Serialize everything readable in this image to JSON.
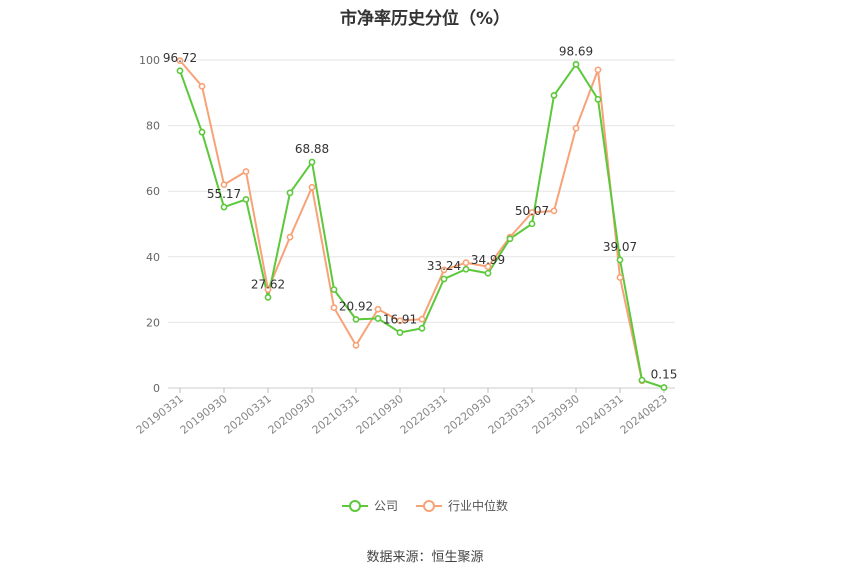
{
  "chart_data": {
    "type": "line",
    "title": "市净率历史分位（%）",
    "ylim": [
      0,
      100
    ],
    "yticks": [
      0,
      20,
      40,
      60,
      80,
      100
    ],
    "x_tick_labels": [
      "20190331",
      "20190930",
      "20200331",
      "20200930",
      "20210331",
      "20210930",
      "20220331",
      "20220930",
      "20230331",
      "20230930",
      "20240331",
      "20240823"
    ],
    "x": [
      "20190331",
      "20190630",
      "20190930",
      "20191231",
      "20200331",
      "20200630",
      "20200930",
      "20201231",
      "20210331",
      "20210630",
      "20210930",
      "20211231",
      "20220331",
      "20220630",
      "20220930",
      "20221231",
      "20230331",
      "20230630",
      "20230930",
      "20231231",
      "20240331",
      "20240630",
      "20240823"
    ],
    "series": [
      {
        "name": "公司",
        "color": "#5cc83b",
        "values": [
          96.72,
          78,
          55.17,
          57.5,
          27.62,
          59.5,
          68.88,
          30,
          20.92,
          21.2,
          16.91,
          18.2,
          33.24,
          36.2,
          34.99,
          45.5,
          50.07,
          89.2,
          98.69,
          88,
          39.07,
          2.4,
          0.15
        ]
      },
      {
        "name": "行业中位数",
        "color": "#f7a277",
        "values": [
          99.8,
          92,
          62,
          66,
          30,
          46,
          61.2,
          24.5,
          13,
          24,
          20.5,
          21,
          36,
          38.2,
          37,
          46,
          53.5,
          54,
          79.2,
          97,
          33.7,
          2.2,
          null
        ]
      }
    ],
    "data_labels": [
      {
        "series": 0,
        "index": 0,
        "text": "96.72"
      },
      {
        "series": 0,
        "index": 2,
        "text": "55.17"
      },
      {
        "series": 0,
        "index": 4,
        "text": "27.62"
      },
      {
        "series": 0,
        "index": 6,
        "text": "68.88"
      },
      {
        "series": 0,
        "index": 8,
        "text": "20.92"
      },
      {
        "series": 0,
        "index": 10,
        "text": "16.91"
      },
      {
        "series": 0,
        "index": 12,
        "text": "33.24"
      },
      {
        "series": 0,
        "index": 14,
        "text": "34.99"
      },
      {
        "series": 0,
        "index": 16,
        "text": "50.07"
      },
      {
        "series": 0,
        "index": 18,
        "text": "98.69"
      },
      {
        "series": 0,
        "index": 20,
        "text": "39.07"
      },
      {
        "series": 0,
        "index": 22,
        "text": "0.15"
      }
    ],
    "grid": true,
    "legend_position": "bottom"
  },
  "legend": {
    "company": "公司",
    "industry": "行业中位数"
  },
  "source": "数据来源：恒生聚源"
}
